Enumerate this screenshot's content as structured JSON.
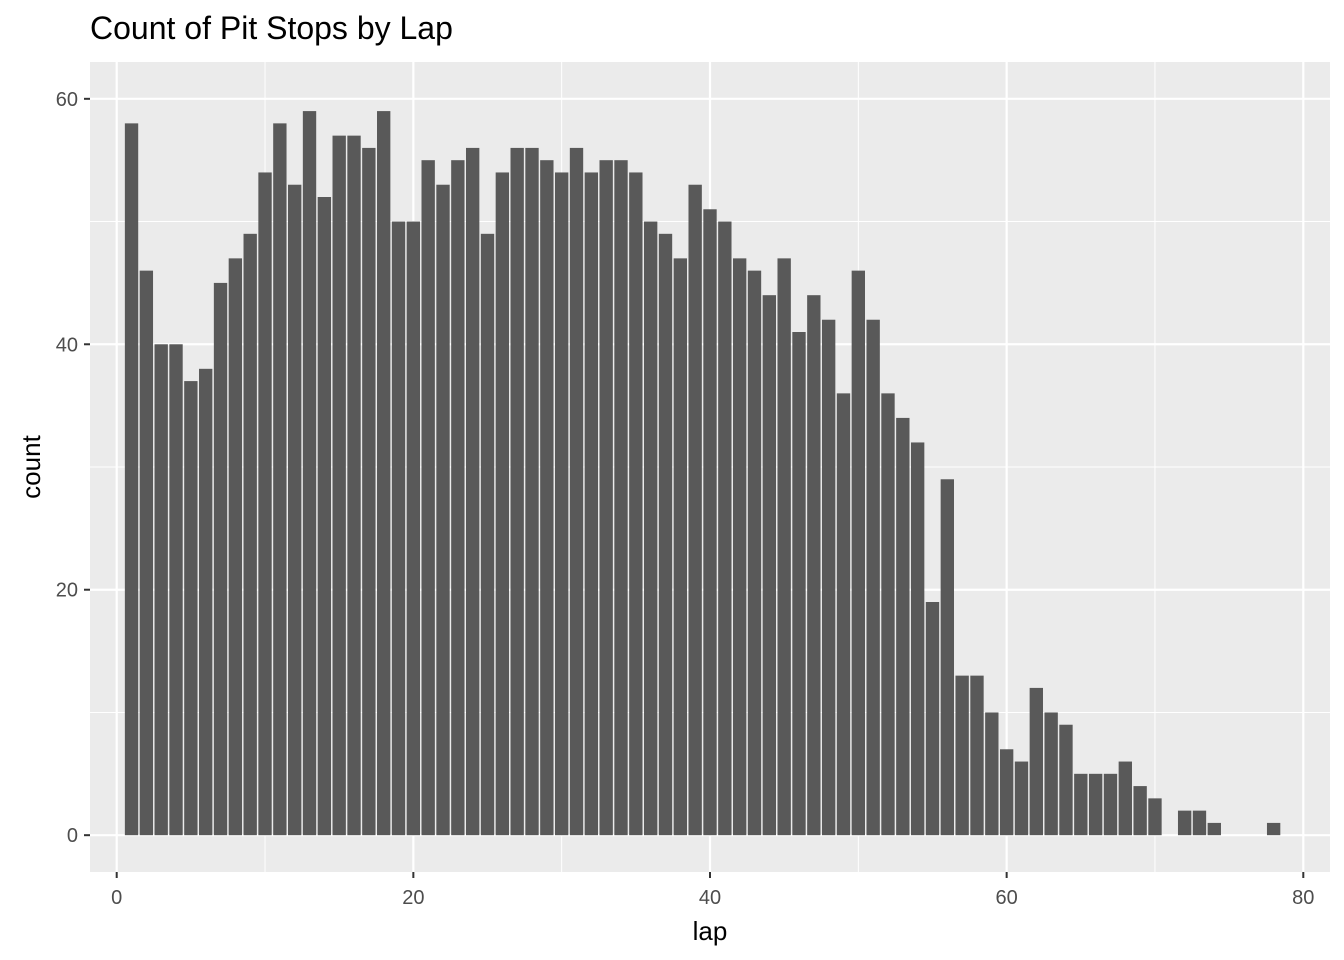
{
  "chart_data": {
    "type": "bar",
    "title": "Count of Pit Stops by Lap",
    "xlabel": "lap",
    "ylabel": "count",
    "xlim": [
      -1.8,
      81.8
    ],
    "ylim": [
      -3,
      63
    ],
    "x_ticks": [
      0,
      20,
      40,
      60,
      80
    ],
    "y_ticks": [
      0,
      20,
      40,
      60
    ],
    "x_tick_labels": [
      "0",
      "20",
      "40",
      "60",
      "80"
    ],
    "y_tick_labels": [
      "0",
      "20",
      "40",
      "60"
    ],
    "grid": true,
    "bar_color": "#595959",
    "panel_color": "#ebebeb",
    "bars": [
      {
        "lap": 1,
        "count": 58
      },
      {
        "lap": 2,
        "count": 46
      },
      {
        "lap": 3,
        "count": 40
      },
      {
        "lap": 4,
        "count": 40
      },
      {
        "lap": 5,
        "count": 37
      },
      {
        "lap": 6,
        "count": 38
      },
      {
        "lap": 7,
        "count": 45
      },
      {
        "lap": 8,
        "count": 47
      },
      {
        "lap": 9,
        "count": 49
      },
      {
        "lap": 10,
        "count": 54
      },
      {
        "lap": 11,
        "count": 58
      },
      {
        "lap": 12,
        "count": 53
      },
      {
        "lap": 13,
        "count": 59
      },
      {
        "lap": 14,
        "count": 52
      },
      {
        "lap": 15,
        "count": 57
      },
      {
        "lap": 16,
        "count": 57
      },
      {
        "lap": 17,
        "count": 56
      },
      {
        "lap": 18,
        "count": 59
      },
      {
        "lap": 19,
        "count": 50
      },
      {
        "lap": 20,
        "count": 50
      },
      {
        "lap": 21,
        "count": 55
      },
      {
        "lap": 22,
        "count": 53
      },
      {
        "lap": 23,
        "count": 55
      },
      {
        "lap": 24,
        "count": 56
      },
      {
        "lap": 25,
        "count": 49
      },
      {
        "lap": 26,
        "count": 54
      },
      {
        "lap": 27,
        "count": 56
      },
      {
        "lap": 28,
        "count": 56
      },
      {
        "lap": 29,
        "count": 55
      },
      {
        "lap": 30,
        "count": 54
      },
      {
        "lap": 31,
        "count": 56
      },
      {
        "lap": 32,
        "count": 54
      },
      {
        "lap": 33,
        "count": 55
      },
      {
        "lap": 34,
        "count": 55
      },
      {
        "lap": 35,
        "count": 54
      },
      {
        "lap": 36,
        "count": 50
      },
      {
        "lap": 37,
        "count": 49
      },
      {
        "lap": 38,
        "count": 47
      },
      {
        "lap": 39,
        "count": 53
      },
      {
        "lap": 40,
        "count": 51
      },
      {
        "lap": 41,
        "count": 50
      },
      {
        "lap": 42,
        "count": 47
      },
      {
        "lap": 43,
        "count": 46
      },
      {
        "lap": 44,
        "count": 44
      },
      {
        "lap": 45,
        "count": 47
      },
      {
        "lap": 46,
        "count": 41
      },
      {
        "lap": 47,
        "count": 44
      },
      {
        "lap": 48,
        "count": 42
      },
      {
        "lap": 49,
        "count": 36
      },
      {
        "lap": 50,
        "count": 46
      },
      {
        "lap": 51,
        "count": 42
      },
      {
        "lap": 52,
        "count": 36
      },
      {
        "lap": 53,
        "count": 34
      },
      {
        "lap": 54,
        "count": 32
      },
      {
        "lap": 55,
        "count": 19
      },
      {
        "lap": 56,
        "count": 29
      },
      {
        "lap": 57,
        "count": 13
      },
      {
        "lap": 58,
        "count": 13
      },
      {
        "lap": 59,
        "count": 10
      },
      {
        "lap": 60,
        "count": 7
      },
      {
        "lap": 61,
        "count": 6
      },
      {
        "lap": 62,
        "count": 12
      },
      {
        "lap": 63,
        "count": 10
      },
      {
        "lap": 64,
        "count": 9
      },
      {
        "lap": 65,
        "count": 5
      },
      {
        "lap": 66,
        "count": 5
      },
      {
        "lap": 67,
        "count": 5
      },
      {
        "lap": 68,
        "count": 6
      },
      {
        "lap": 69,
        "count": 4
      },
      {
        "lap": 70,
        "count": 3
      },
      {
        "lap": 72,
        "count": 2
      },
      {
        "lap": 73,
        "count": 2
      },
      {
        "lap": 74,
        "count": 1
      },
      {
        "lap": 78,
        "count": 1
      }
    ]
  }
}
